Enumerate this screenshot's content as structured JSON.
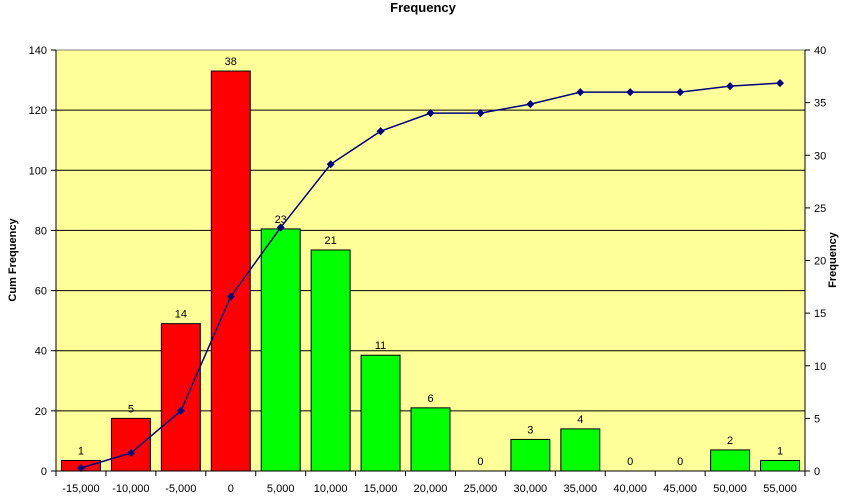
{
  "chart_data": {
    "type": "bar",
    "title": "Frequency",
    "ylabel_left": "Cum Frequency",
    "ylabel_right": "Frequency",
    "categories": [
      "-15,000",
      "-10,000",
      "-5,000",
      "0",
      "5,000",
      "10,000",
      "15,000",
      "20,000",
      "25,000",
      "30,000",
      "35,000",
      "40,000",
      "45,000",
      "50,000",
      "55,000"
    ],
    "series": [
      {
        "name": "Frequency",
        "type": "bar",
        "axis": "right",
        "values": [
          1,
          5,
          14,
          38,
          23,
          21,
          11,
          6,
          0,
          3,
          4,
          0,
          0,
          2,
          1
        ],
        "colors": [
          "#ff0000",
          "#ff0000",
          "#ff0000",
          "#ff0000",
          "#00ff00",
          "#00ff00",
          "#00ff00",
          "#00ff00",
          "#00ff00",
          "#00ff00",
          "#00ff00",
          "#00ff00",
          "#00ff00",
          "#00ff00",
          "#00ff00"
        ]
      },
      {
        "name": "Cum Frequency",
        "type": "line",
        "axis": "left",
        "color": "#000080",
        "values": [
          1,
          6,
          20,
          58,
          81,
          102,
          113,
          119,
          119,
          122,
          126,
          126,
          126,
          128,
          129
        ]
      }
    ],
    "y_left": {
      "min": 0,
      "max": 140,
      "step": 20,
      "ticks": [
        "0",
        "20",
        "40",
        "60",
        "80",
        "100",
        "120",
        "140"
      ]
    },
    "y_right": {
      "min": 0,
      "max": 40,
      "step": 5,
      "ticks": [
        "0",
        "5",
        "10",
        "15",
        "20",
        "25",
        "30",
        "35",
        "40"
      ]
    },
    "plot_background": "#ffff99",
    "grid": true,
    "legend": "none"
  }
}
